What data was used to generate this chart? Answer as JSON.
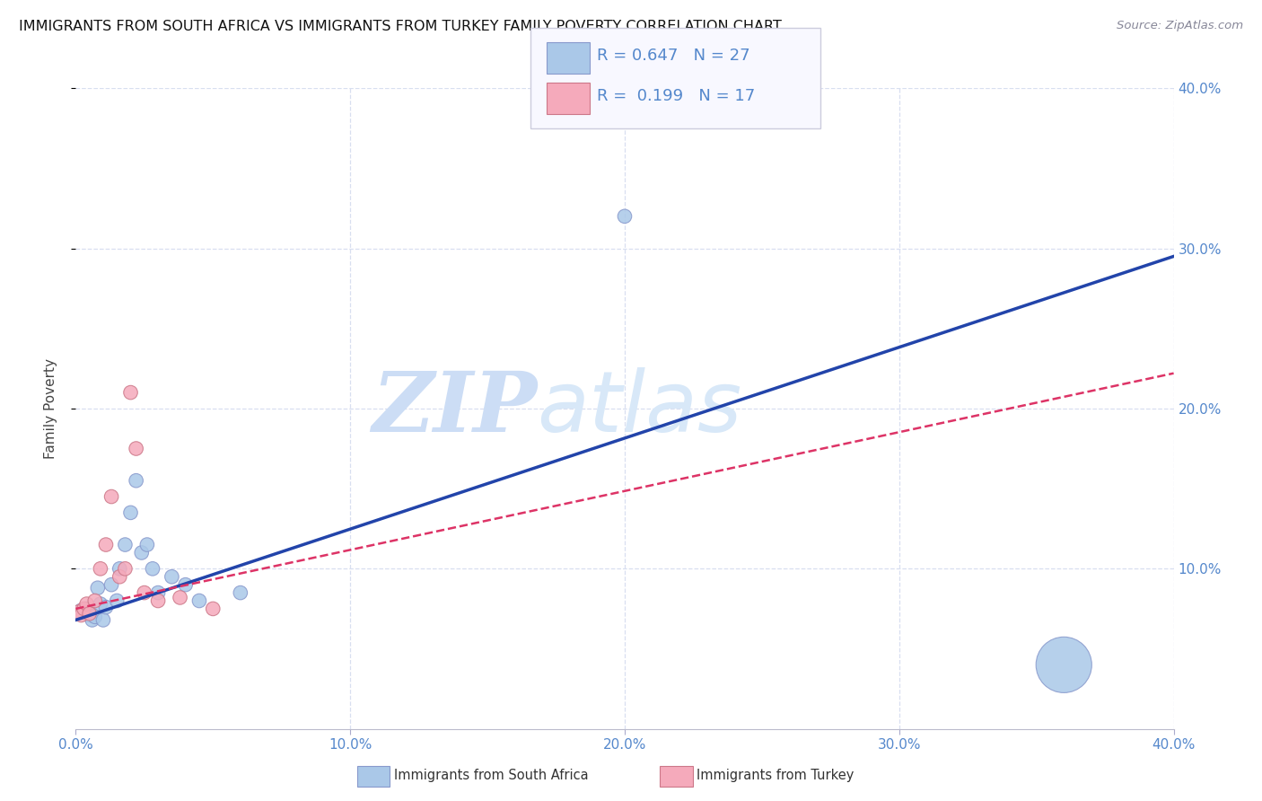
{
  "title": "IMMIGRANTS FROM SOUTH AFRICA VS IMMIGRANTS FROM TURKEY FAMILY POVERTY CORRELATION CHART",
  "source": "Source: ZipAtlas.com",
  "ylabel": "Family Poverty",
  "xlim": [
    0.0,
    0.4
  ],
  "ylim": [
    0.0,
    0.4
  ],
  "xtick_vals": [
    0.0,
    0.1,
    0.2,
    0.3,
    0.4
  ],
  "ytick_vals": [
    0.1,
    0.2,
    0.3,
    0.4
  ],
  "legend_label1": "Immigrants from South Africa",
  "legend_label2": "Immigrants from Turkey",
  "r1": "0.647",
  "n1": "27",
  "r2": "0.199",
  "n2": "17",
  "color_blue": "#aac8e8",
  "color_pink": "#f5aabb",
  "line_blue": "#2244aa",
  "line_pink": "#dd3366",
  "watermark_zip": "ZIP",
  "watermark_atlas": "atlas",
  "watermark_color": "#ccddf5",
  "south_africa_x": [
    0.001,
    0.002,
    0.003,
    0.004,
    0.005,
    0.006,
    0.007,
    0.008,
    0.009,
    0.01,
    0.011,
    0.013,
    0.015,
    0.016,
    0.018,
    0.02,
    0.022,
    0.024,
    0.026,
    0.028,
    0.03,
    0.035,
    0.04,
    0.045,
    0.06,
    0.2,
    0.36
  ],
  "south_africa_y": [
    0.072,
    0.074,
    0.073,
    0.075,
    0.071,
    0.068,
    0.07,
    0.088,
    0.078,
    0.068,
    0.076,
    0.09,
    0.08,
    0.1,
    0.115,
    0.135,
    0.155,
    0.11,
    0.115,
    0.1,
    0.085,
    0.095,
    0.09,
    0.08,
    0.085,
    0.32,
    0.04
  ],
  "south_africa_size": [
    25,
    25,
    30,
    25,
    25,
    25,
    25,
    25,
    25,
    25,
    25,
    25,
    25,
    25,
    25,
    25,
    25,
    25,
    25,
    25,
    25,
    25,
    25,
    25,
    25,
    25,
    400
  ],
  "turkey_x": [
    0.001,
    0.002,
    0.003,
    0.004,
    0.005,
    0.007,
    0.009,
    0.011,
    0.013,
    0.016,
    0.018,
    0.02,
    0.022,
    0.025,
    0.03,
    0.038,
    0.05
  ],
  "turkey_y": [
    0.073,
    0.071,
    0.075,
    0.078,
    0.072,
    0.08,
    0.1,
    0.115,
    0.145,
    0.095,
    0.1,
    0.21,
    0.175,
    0.085,
    0.08,
    0.082,
    0.075
  ],
  "turkey_size": [
    25,
    25,
    25,
    25,
    25,
    25,
    25,
    25,
    25,
    25,
    25,
    25,
    25,
    25,
    25,
    25,
    25
  ],
  "blue_line_x": [
    0.0,
    0.4
  ],
  "blue_line_y": [
    0.068,
    0.295
  ],
  "pink_line_x": [
    0.0,
    0.4
  ],
  "pink_line_y": [
    0.075,
    0.222
  ],
  "background_color": "#ffffff",
  "grid_color": "#d8dff0",
  "tick_color": "#5588cc",
  "axis_label_color": "#444444",
  "legend_box_color": "#f8f8ff",
  "legend_border_color": "#ccccdd"
}
